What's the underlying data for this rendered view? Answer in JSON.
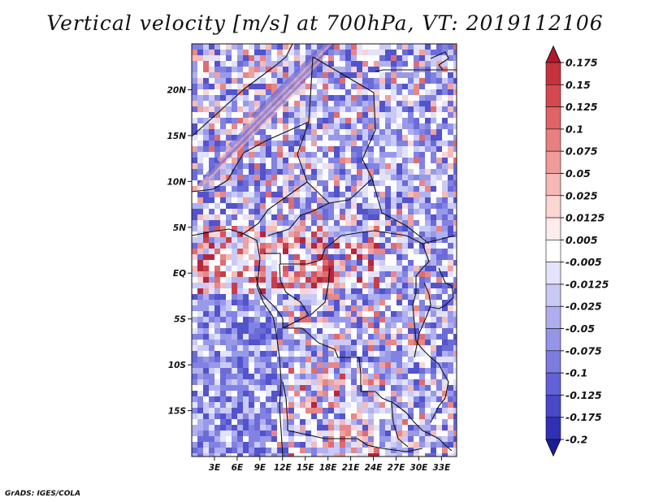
{
  "title": "Vertical velocity [m/s] at 700hPa, VT: 2019112106",
  "credit": "GrADS: IGES/COLA",
  "map": {
    "lon_range": [
      0,
      35
    ],
    "lat_range": [
      -20,
      25
    ],
    "lat_ticks": [
      {
        "value": 20,
        "label": "20N"
      },
      {
        "value": 15,
        "label": "15N"
      },
      {
        "value": 10,
        "label": "10N"
      },
      {
        "value": 5,
        "label": "5N"
      },
      {
        "value": 0,
        "label": "EQ"
      },
      {
        "value": -5,
        "label": "5S"
      },
      {
        "value": -10,
        "label": "10S"
      },
      {
        "value": -15,
        "label": "15S"
      }
    ],
    "lon_ticks": [
      {
        "value": 3,
        "label": "3E"
      },
      {
        "value": 6,
        "label": "6E"
      },
      {
        "value": 9,
        "label": "9E"
      },
      {
        "value": 12,
        "label": "12E"
      },
      {
        "value": 15,
        "label": "15E"
      },
      {
        "value": 18,
        "label": "18E"
      },
      {
        "value": 21,
        "label": "21E"
      },
      {
        "value": 24,
        "label": "24E"
      },
      {
        "value": 27,
        "label": "27E"
      },
      {
        "value": 30,
        "label": "30E"
      },
      {
        "value": 33,
        "label": "33E"
      }
    ]
  },
  "colorbar": {
    "labels": [
      "0.175",
      "0.15",
      "0.125",
      "0.1",
      "0.075",
      "0.05",
      "0.025",
      "0.0125",
      "0.005",
      "-0.005",
      "-0.0125",
      "-0.025",
      "-0.05",
      "-0.075",
      "-0.1",
      "-0.125",
      "-0.175",
      "-0.2"
    ],
    "colors": [
      "#b2182b",
      "#c6313b",
      "#d6484f",
      "#e06366",
      "#e8807f",
      "#ef9c99",
      "#f5b8b4",
      "#fad5d2",
      "#fdeceb",
      "#ffffff",
      "#e3e3fb",
      "#c9c9f5",
      "#aeaeef",
      "#9494e8",
      "#7b7be0",
      "#6262d6",
      "#4848c8",
      "#3030b4",
      "#1c1c9a"
    ]
  }
}
